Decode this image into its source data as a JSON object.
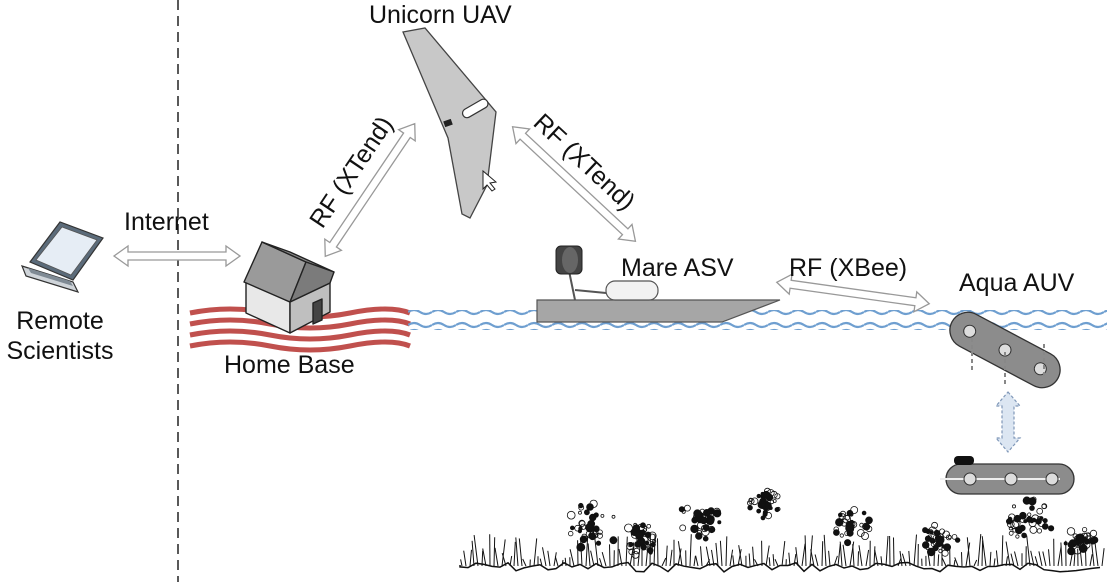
{
  "labels": {
    "remote_scientists_line1": "Remote",
    "remote_scientists_line2": "Scientists",
    "internet": "Internet",
    "home_base": "Home Base",
    "unicorn_uav": "Unicorn UAV",
    "rf_xtend_left": "RF (XTend)",
    "rf_xtend_right": "RF (XTend)",
    "mare_asv": "Mare ASV",
    "rf_xbee": "RF (XBee)",
    "aqua_auv": "Aqua AUV"
  },
  "nodes": [
    {
      "id": "remote-scientists",
      "icon": "laptop-icon"
    },
    {
      "id": "home-base",
      "icon": "house-icon"
    },
    {
      "id": "unicorn-uav",
      "icon": "flying-wing-uav-icon"
    },
    {
      "id": "mare-asv",
      "icon": "surface-vessel-icon"
    },
    {
      "id": "aqua-auv",
      "icon": "underwater-robot-icon"
    }
  ],
  "links": [
    {
      "from": "remote-scientists",
      "to": "home-base",
      "label": "Internet"
    },
    {
      "from": "home-base",
      "to": "unicorn-uav",
      "label": "RF (XTend)"
    },
    {
      "from": "unicorn-uav",
      "to": "mare-asv",
      "label": "RF (XTend)"
    },
    {
      "from": "mare-asv",
      "to": "aqua-auv",
      "label": "RF (XBee)"
    },
    {
      "from": "aqua-auv",
      "to": "aqua-auv-diving",
      "label": ""
    }
  ],
  "colors": {
    "water": "#6f9fd0",
    "land": "#c0504d",
    "uav": "#c8c8c8",
    "vessel": "#a6a6a6",
    "auv": "#8c8c8c",
    "arrow_fill": "#ffffff",
    "arrow_stroke": "#9a9a9a",
    "dive_arrow_fill": "#dce6f2",
    "seafloor": "#111111"
  }
}
